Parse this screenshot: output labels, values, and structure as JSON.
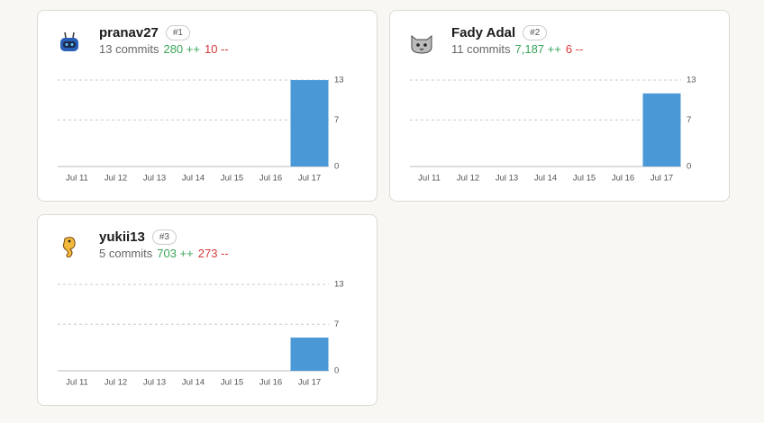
{
  "cards": [
    {
      "name": "pranav27",
      "rank": "#1",
      "commits": "13 commits",
      "additions": "280 ++",
      "deletions": "10 --",
      "chart_data": {
        "type": "bar",
        "categories": [
          "Jul 11",
          "Jul 12",
          "Jul 13",
          "Jul 14",
          "Jul 15",
          "Jul 16",
          "Jul 17"
        ],
        "values": [
          0,
          0,
          0,
          0,
          0,
          0,
          13
        ],
        "color": "#4a98d6",
        "ylim": [
          0,
          13
        ],
        "yticks": [
          0,
          7,
          13
        ],
        "grid": true
      }
    },
    {
      "name": "Fady Adal",
      "rank": "#2",
      "commits": "11 commits",
      "additions": "7,187 ++",
      "deletions": "6 --",
      "chart_data": {
        "type": "bar",
        "categories": [
          "Jul 11",
          "Jul 12",
          "Jul 13",
          "Jul 14",
          "Jul 15",
          "Jul 16",
          "Jul 17"
        ],
        "values": [
          0,
          0,
          0,
          0,
          0,
          0,
          11
        ],
        "color": "#4a98d6",
        "ylim": [
          0,
          13
        ],
        "yticks": [
          0,
          7,
          13
        ],
        "grid": true
      }
    },
    {
      "name": "yukii13",
      "rank": "#3",
      "commits": "5 commits",
      "additions": "703 ++",
      "deletions": "273 --",
      "chart_data": {
        "type": "bar",
        "categories": [
          "Jul 11",
          "Jul 12",
          "Jul 13",
          "Jul 14",
          "Jul 15",
          "Jul 16",
          "Jul 17"
        ],
        "values": [
          0,
          0,
          0,
          0,
          0,
          0,
          5
        ],
        "color": "#4a98d6",
        "ylim": [
          0,
          13
        ],
        "yticks": [
          0,
          7,
          13
        ],
        "grid": true
      }
    }
  ]
}
